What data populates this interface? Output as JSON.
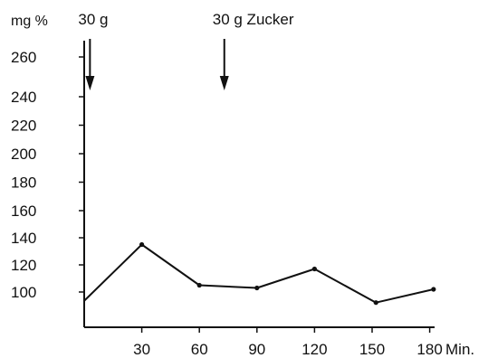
{
  "chart_data": {
    "type": "line",
    "y_unit": "mg %",
    "x_unit": "Min.",
    "x_ticks": [
      30,
      60,
      90,
      120,
      150,
      180
    ],
    "y_ticks": [
      100,
      120,
      140,
      160,
      180,
      200,
      220,
      240,
      260
    ],
    "y_axis_note": "broken scale: 100–160 step 20 (wide), 160–240 step 20 (compressed), 240–260",
    "xlim": [
      0,
      185
    ],
    "series": [
      {
        "x": [
          0,
          30,
          60,
          90,
          120,
          152,
          182
        ],
        "y": [
          95,
          135,
          105,
          103,
          117,
          94,
          102
        ]
      }
    ],
    "annotations": [
      {
        "text": "30 g",
        "x": 3
      },
      {
        "text": "30 g Zucker",
        "x": 73
      }
    ],
    "grid": false,
    "legend": "none"
  }
}
